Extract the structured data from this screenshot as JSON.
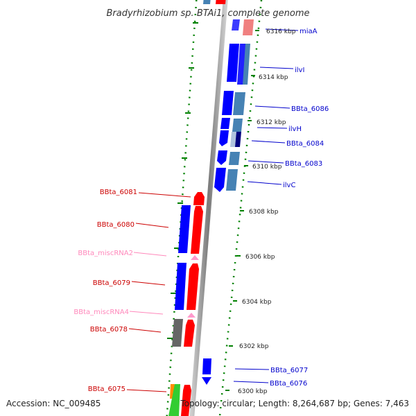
{
  "title": "Bradyrhizobium sp. BTAi1, complete genome",
  "footer": {
    "accession": "Accession: NC_009485",
    "summary": "Topology: circular; Length: 8,264,687 bp; Genes: 7,463"
  },
  "ticks": [
    "6316 kbp",
    "6314 kbp",
    "6312 kbp",
    "6310 kbp",
    "6308 kbp",
    "6306 kbp",
    "6304 kbp",
    "6302 kbp",
    "6300 kbp"
  ],
  "genes_right": [
    "miaA",
    "ilvI",
    "BBta_6086",
    "ilvH",
    "BBta_6084",
    "BBta_6083",
    "ilvC",
    "BBta_6077",
    "BBta_6076"
  ],
  "genes_left": [
    "BBta_6081",
    "BBta_6080",
    "BBta_miscRNA2",
    "BBta_6079",
    "BBta_miscRNA4",
    "BBta_6078",
    "BBta_6075"
  ],
  "colors": {
    "cds_forward": "#ff0000",
    "cds_reverse": "#0000ff",
    "cds_light_blue": "#4682b4",
    "cds_gray": "#666666",
    "misc_rna": "#ff99cc",
    "label_right": "#0000cc",
    "label_left": "#cc0000",
    "label_rna": "#ff88bb",
    "backbone": "#888888",
    "tick_green": "#008000"
  }
}
